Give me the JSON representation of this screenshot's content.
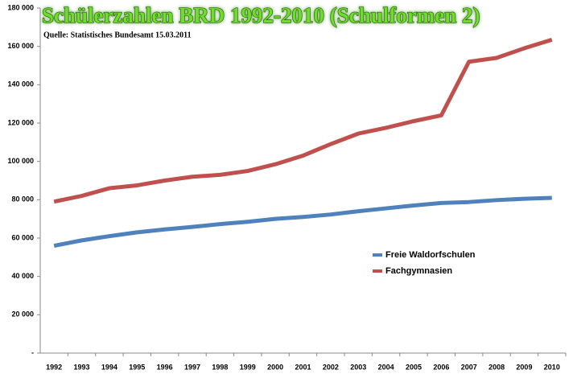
{
  "chart_data": {
    "type": "line",
    "title": "Schülerzahlen BRD 1992-2010 (Schulformen 2)",
    "subtitle": "Quelle: Statistisches Bundesamt 15.03.2011",
    "categories": [
      "1992",
      "1993",
      "1994",
      "1995",
      "1996",
      "1997",
      "1998",
      "1999",
      "2000",
      "2001",
      "2002",
      "2003",
      "2004",
      "2005",
      "2006",
      "2007",
      "2008",
      "2009",
      "2010"
    ],
    "series": [
      {
        "name": "Freie Waldorfschulen",
        "color": "#4f81bd",
        "values": [
          56000,
          58800,
          61000,
          63000,
          64500,
          65800,
          67300,
          68500,
          70000,
          71000,
          72300,
          74000,
          75500,
          77000,
          78300,
          78800,
          79800,
          80500,
          81000
        ]
      },
      {
        "name": "Fachgymnasien",
        "color": "#c0504d",
        "values": [
          79000,
          82000,
          86000,
          87500,
          90000,
          92000,
          93000,
          95000,
          98500,
          103000,
          109000,
          114500,
          117500,
          121000,
          124000,
          152000,
          154000,
          159000,
          163500
        ]
      }
    ],
    "ylim": [
      0,
      180000
    ],
    "yticks": [
      {
        "value": 0,
        "label": "-"
      },
      {
        "value": 20000,
        "label": "20 000"
      },
      {
        "value": 40000,
        "label": "40 000"
      },
      {
        "value": 60000,
        "label": "60 000"
      },
      {
        "value": 80000,
        "label": "80 000"
      },
      {
        "value": 100000,
        "label": "100 000"
      },
      {
        "value": 120000,
        "label": "120 000"
      },
      {
        "value": 140000,
        "label": "140 000"
      },
      {
        "value": 160000,
        "label": "160 000"
      },
      {
        "value": 180000,
        "label": "180 000"
      }
    ],
    "grid": false,
    "legend_position": "right"
  }
}
